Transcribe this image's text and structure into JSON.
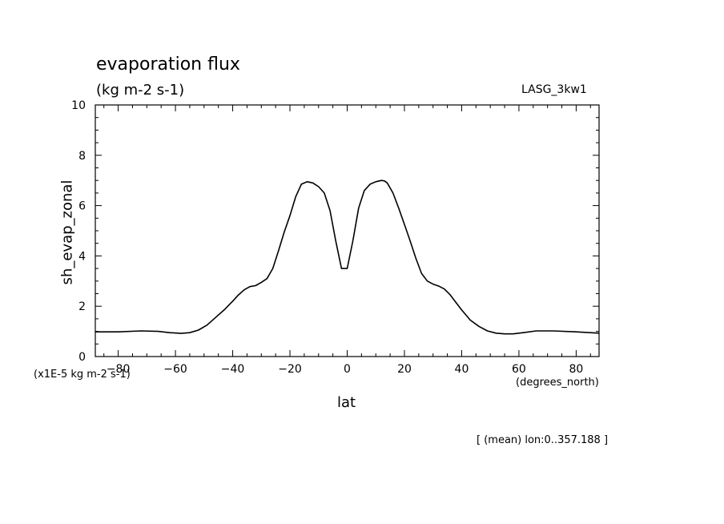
{
  "chart_data": {
    "type": "line",
    "title": "evaporation flux",
    "subtitle": "(kg m-2 s-1)",
    "run_label": "LASG_3kw1",
    "xlabel": "lat",
    "x_units": "(degrees_north)",
    "ylabel": "sh_evap_zonal",
    "y_scale_note": "(x1E-5 kg m-2 s-1)",
    "mean_note": "[ (mean) lon:0..357.188 ]",
    "xlim": [
      -88,
      88
    ],
    "ylim": [
      0,
      10
    ],
    "x_ticks": [
      -80,
      -60,
      -40,
      -20,
      0,
      20,
      40,
      60,
      80
    ],
    "y_ticks": [
      0,
      2,
      4,
      6,
      8,
      10
    ],
    "grid": false,
    "color": "#000000",
    "series": [
      {
        "x": [
          -88,
          -80,
          -72,
          -66,
          -62,
          -58,
          -55,
          -52,
          -49,
          -46,
          -43,
          -40,
          -38,
          -36,
          -34,
          -32,
          -30,
          -28,
          -26,
          -24,
          -22,
          -20,
          -18,
          -16,
          -14,
          -12,
          -10,
          -8,
          -6,
          -4,
          -2,
          0,
          2,
          4,
          6,
          8,
          10,
          12,
          13,
          14,
          16,
          18,
          20,
          22,
          24,
          26,
          28,
          30,
          32,
          34,
          36,
          38,
          40,
          43,
          46,
          49,
          52,
          55,
          58,
          62,
          66,
          72,
          80,
          88
        ],
        "y": [
          0.98,
          0.98,
          1.02,
          1.0,
          0.95,
          0.92,
          0.95,
          1.05,
          1.25,
          1.55,
          1.85,
          2.2,
          2.45,
          2.65,
          2.78,
          2.82,
          2.95,
          3.1,
          3.5,
          4.2,
          4.95,
          5.6,
          6.35,
          6.85,
          6.95,
          6.9,
          6.75,
          6.5,
          5.8,
          4.6,
          3.5,
          3.5,
          4.6,
          5.9,
          6.6,
          6.85,
          6.95,
          7.0,
          6.98,
          6.9,
          6.5,
          5.9,
          5.25,
          4.6,
          3.9,
          3.3,
          3.0,
          2.88,
          2.8,
          2.68,
          2.45,
          2.15,
          1.85,
          1.45,
          1.2,
          1.02,
          0.93,
          0.9,
          0.9,
          0.96,
          1.02,
          1.02,
          0.98,
          0.93
        ]
      }
    ]
  }
}
